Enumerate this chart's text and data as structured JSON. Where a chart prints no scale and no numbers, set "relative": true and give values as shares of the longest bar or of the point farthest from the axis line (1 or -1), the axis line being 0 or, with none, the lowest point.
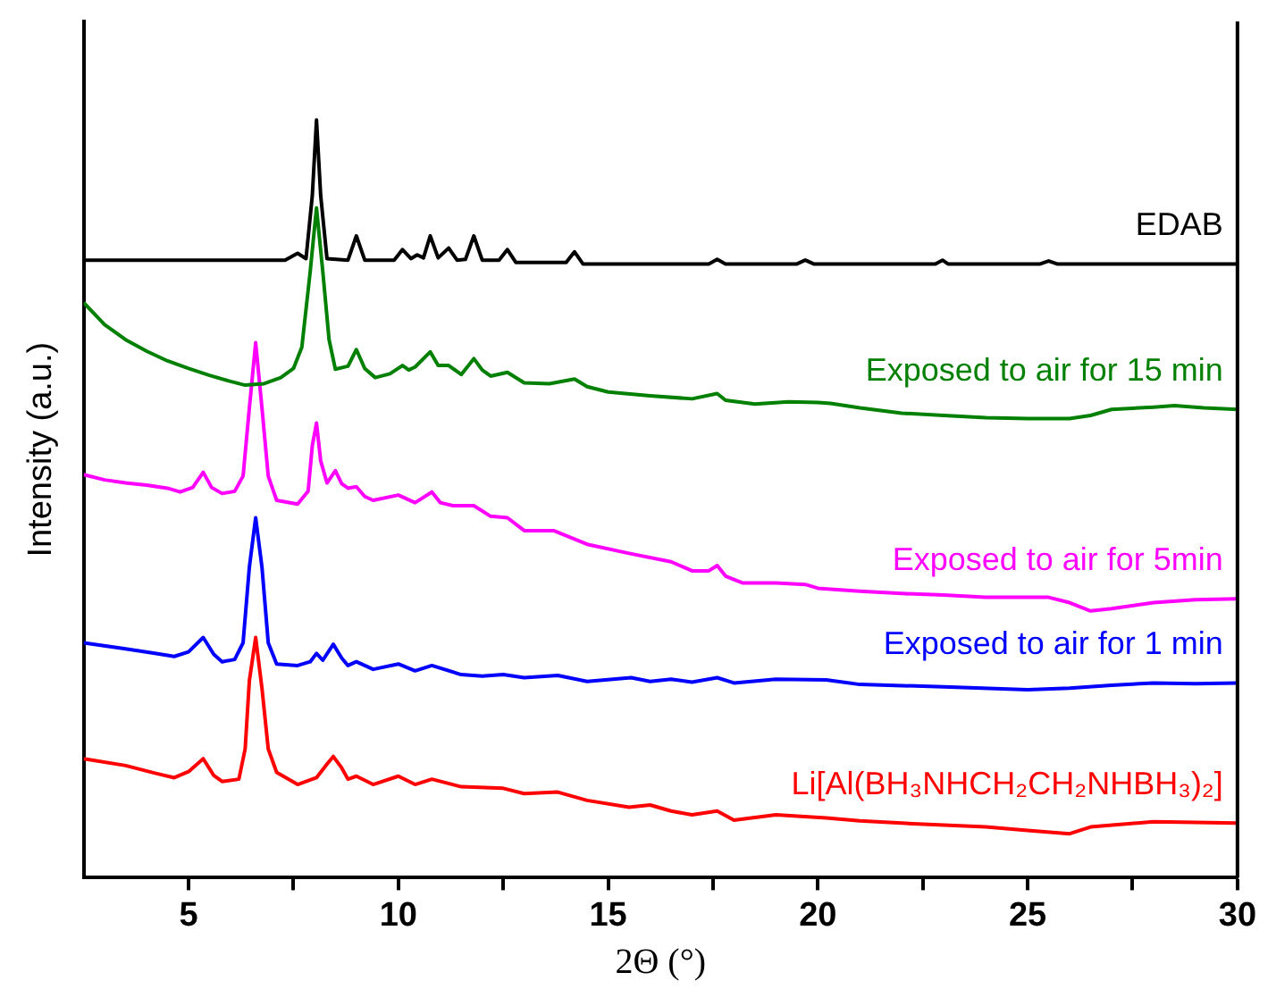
{
  "chart_data": {
    "type": "line",
    "relative": true,
    "xlabel": "2Θ (°)",
    "ylabel": "Intensity (a.u.)",
    "xlim": [
      2.5,
      30
    ],
    "xticks": [
      5,
      {
        "value": 7.5,
        "label": null
      },
      10,
      {
        "value": 12.5,
        "label": null
      },
      15,
      {
        "value": 17.5,
        "label": null
      },
      20,
      {
        "value": 22.5,
        "label": null
      },
      25,
      {
        "value": 27.5,
        "label": null
      },
      30
    ],
    "series": [
      {
        "name": "EDAB",
        "color": "#000000",
        "x": [
          2.5,
          7.3,
          7.6,
          7.8,
          7.95,
          8.05,
          8.15,
          8.3,
          8.8,
          9.0,
          9.2,
          9.9,
          10.1,
          10.3,
          10.45,
          10.6,
          10.76,
          10.95,
          11.2,
          11.4,
          11.6,
          11.8,
          12.0,
          12.4,
          12.6,
          12.8,
          14.0,
          14.2,
          14.4,
          17.4,
          17.6,
          17.8,
          19.5,
          19.7,
          19.9,
          22.8,
          22.97,
          23.1,
          25.3,
          25.5,
          25.7,
          30
        ],
        "values": [
          0.815,
          0.815,
          0.824,
          0.817,
          0.9,
          1.0,
          0.9,
          0.817,
          0.815,
          0.847,
          0.815,
          0.815,
          0.829,
          0.817,
          0.822,
          0.818,
          0.847,
          0.818,
          0.831,
          0.815,
          0.816,
          0.847,
          0.815,
          0.815,
          0.829,
          0.812,
          0.812,
          0.826,
          0.81,
          0.81,
          0.816,
          0.81,
          0.81,
          0.815,
          0.81,
          0.81,
          0.815,
          0.81,
          0.81,
          0.814,
          0.81,
          0.81
        ]
      },
      {
        "name": "Exposed to air for 15 min",
        "color": "#008000",
        "x": [
          2.5,
          3.0,
          3.5,
          4.0,
          4.5,
          5.0,
          5.5,
          6.0,
          6.35,
          6.8,
          7.2,
          7.5,
          7.7,
          7.9,
          8.05,
          8.2,
          8.35,
          8.5,
          8.8,
          9.0,
          9.2,
          9.45,
          9.8,
          10.1,
          10.25,
          10.4,
          10.76,
          10.95,
          11.2,
          11.5,
          11.8,
          12.0,
          12.2,
          12.6,
          13.0,
          13.6,
          14.2,
          14.5,
          15,
          16,
          17,
          17.6,
          17.8,
          18.5,
          19.3,
          20,
          20.3,
          21,
          22,
          23,
          24,
          25,
          26,
          26.5,
          27,
          28,
          28.5,
          29.2,
          30
        ],
        "values": [
          0.759,
          0.73,
          0.71,
          0.695,
          0.682,
          0.672,
          0.663,
          0.655,
          0.65,
          0.652,
          0.66,
          0.672,
          0.7,
          0.8,
          0.884,
          0.8,
          0.71,
          0.671,
          0.675,
          0.697,
          0.672,
          0.66,
          0.665,
          0.676,
          0.67,
          0.674,
          0.694,
          0.676,
          0.676,
          0.664,
          0.685,
          0.67,
          0.662,
          0.667,
          0.653,
          0.652,
          0.658,
          0.648,
          0.641,
          0.636,
          0.632,
          0.639,
          0.63,
          0.625,
          0.628,
          0.627,
          0.626,
          0.62,
          0.613,
          0.61,
          0.607,
          0.606,
          0.606,
          0.61,
          0.618,
          0.621,
          0.623,
          0.62,
          0.618
        ]
      },
      {
        "name": "Exposed to air for 5min",
        "color": "#ff00ff",
        "x": [
          2.5,
          3.0,
          3.5,
          4.0,
          4.5,
          4.8,
          5.1,
          5.35,
          5.55,
          5.8,
          6.1,
          6.3,
          6.45,
          6.6,
          6.75,
          6.9,
          7.1,
          7.6,
          7.85,
          7.95,
          8.05,
          8.15,
          8.3,
          8.5,
          8.65,
          8.8,
          9.0,
          9.2,
          9.4,
          10.0,
          10.4,
          10.8,
          11.0,
          11.3,
          11.8,
          12.2,
          12.6,
          13.0,
          13.7,
          14.5,
          15.5,
          16.5,
          17.0,
          17.4,
          17.6,
          17.8,
          18.2,
          19,
          19.7,
          20,
          21,
          22,
          23,
          24,
          25.5,
          26,
          26.5,
          27,
          28,
          29,
          30
        ],
        "values": [
          0.532,
          0.525,
          0.521,
          0.518,
          0.514,
          0.509,
          0.515,
          0.535,
          0.515,
          0.507,
          0.51,
          0.53,
          0.62,
          0.706,
          0.62,
          0.53,
          0.498,
          0.493,
          0.51,
          0.57,
          0.6,
          0.55,
          0.521,
          0.537,
          0.52,
          0.514,
          0.516,
          0.503,
          0.498,
          0.505,
          0.495,
          0.509,
          0.495,
          0.491,
          0.491,
          0.477,
          0.475,
          0.458,
          0.458,
          0.44,
          0.428,
          0.417,
          0.405,
          0.405,
          0.412,
          0.398,
          0.389,
          0.389,
          0.387,
          0.382,
          0.378,
          0.375,
          0.373,
          0.37,
          0.37,
          0.363,
          0.352,
          0.355,
          0.363,
          0.367,
          0.368
        ]
      },
      {
        "name": "Exposed to air for 1 min",
        "color": "#0000ff",
        "x": [
          2.5,
          3.5,
          4.2,
          4.66,
          5.0,
          5.35,
          5.6,
          5.8,
          6.1,
          6.3,
          6.45,
          6.6,
          6.75,
          6.9,
          7.1,
          7.6,
          7.9,
          8.05,
          8.2,
          8.45,
          8.65,
          8.8,
          9.0,
          9.4,
          10.0,
          10.4,
          10.8,
          11.5,
          12,
          12.5,
          13,
          13.8,
          14.5,
          15.55,
          16,
          16.5,
          17,
          17.6,
          18,
          19,
          20.2,
          21,
          23,
          25,
          26,
          27,
          28,
          29,
          30
        ],
        "values": [
          0.31,
          0.302,
          0.296,
          0.292,
          0.298,
          0.317,
          0.295,
          0.285,
          0.288,
          0.31,
          0.41,
          0.475,
          0.41,
          0.31,
          0.282,
          0.28,
          0.285,
          0.296,
          0.287,
          0.308,
          0.29,
          0.28,
          0.285,
          0.275,
          0.282,
          0.273,
          0.28,
          0.268,
          0.266,
          0.268,
          0.264,
          0.267,
          0.259,
          0.264,
          0.259,
          0.262,
          0.258,
          0.264,
          0.257,
          0.262,
          0.261,
          0.255,
          0.252,
          0.248,
          0.25,
          0.254,
          0.257,
          0.256,
          0.257
        ]
      },
      {
        "name": "Li[Al(BH₃NHCH₂CH₂NHBH₃)₂]",
        "color": "#ff0000",
        "x": [
          2.5,
          3.5,
          4.2,
          4.66,
          5.0,
          5.35,
          5.6,
          5.8,
          6.2,
          6.35,
          6.45,
          6.6,
          6.75,
          6.9,
          7.1,
          7.6,
          8.05,
          8.3,
          8.45,
          8.65,
          8.8,
          9.0,
          9.4,
          10.0,
          10.4,
          10.8,
          11.5,
          12.5,
          13.0,
          13.8,
          14.5,
          15.5,
          16,
          16.5,
          17,
          17.6,
          18,
          19,
          20.2,
          21,
          22,
          24,
          25,
          26,
          26.5,
          28,
          29,
          30
        ],
        "values": [
          0.157,
          0.148,
          0.138,
          0.132,
          0.14,
          0.157,
          0.135,
          0.127,
          0.13,
          0.17,
          0.26,
          0.317,
          0.25,
          0.17,
          0.139,
          0.123,
          0.132,
          0.15,
          0.16,
          0.145,
          0.13,
          0.134,
          0.123,
          0.134,
          0.123,
          0.13,
          0.12,
          0.118,
          0.111,
          0.113,
          0.102,
          0.093,
          0.096,
          0.088,
          0.083,
          0.088,
          0.076,
          0.083,
          0.079,
          0.075,
          0.072,
          0.067,
          0.0625,
          0.058,
          0.067,
          0.074,
          0.073,
          0.072
        ]
      }
    ]
  }
}
